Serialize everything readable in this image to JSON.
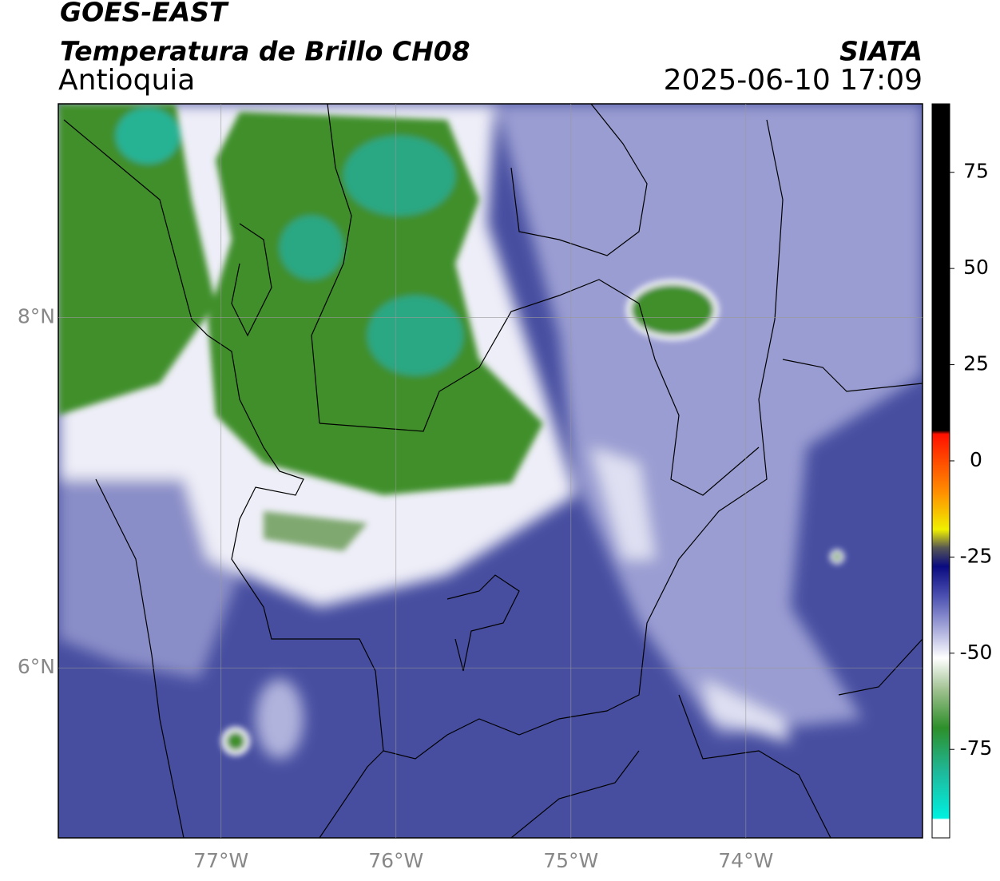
{
  "header": {
    "title": "GOES-EAST",
    "subtitle": "Temperatura de Brillo CH08",
    "region": "Antioquia",
    "source": "SIATA",
    "datetime": "2025-06-10 17:09"
  },
  "map": {
    "xlim": [
      -77.93,
      -72.99
    ],
    "ylim": [
      5.03,
      9.22
    ],
    "xticks": [
      {
        "value": -77,
        "label": "77°W"
      },
      {
        "value": -76,
        "label": "76°W"
      },
      {
        "value": -75,
        "label": "75°W"
      },
      {
        "value": -74,
        "label": "74°W"
      }
    ],
    "yticks": [
      {
        "value": 6,
        "label": "6°N"
      },
      {
        "value": 8,
        "label": "8°N"
      }
    ],
    "grid": true
  },
  "colorbar": {
    "range": [
      -98,
      92.8
    ],
    "ticks": [
      -75,
      -50,
      -25,
      0,
      25,
      50,
      75
    ]
  }
}
